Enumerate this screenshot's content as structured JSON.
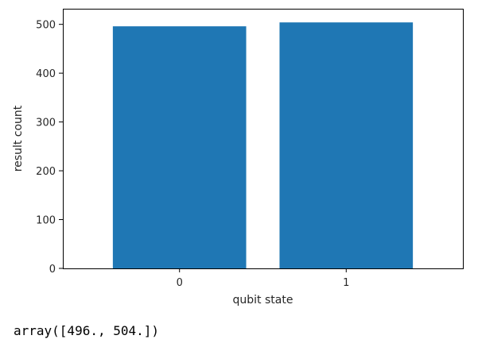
{
  "chart_data": {
    "type": "bar",
    "categories": [
      "0",
      "1"
    ],
    "values": [
      496,
      504
    ],
    "title": "",
    "xlabel": "qubit state",
    "ylabel": "result count",
    "ylim": [
      0,
      532
    ],
    "yticks": [
      0,
      100,
      200,
      300,
      400,
      500
    ],
    "grid": false,
    "bar_color": "#1f77b4"
  },
  "output": {
    "text": "array([496., 504.])"
  }
}
